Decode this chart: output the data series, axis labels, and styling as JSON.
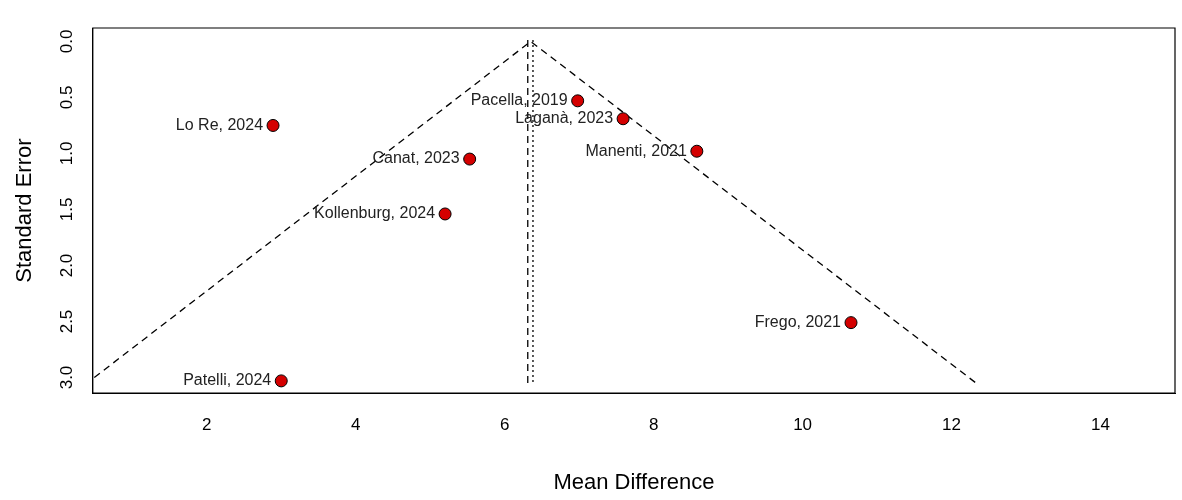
{
  "chart_data": {
    "type": "scatter",
    "xlabel": "Mean Difference",
    "ylabel": "Standard Error",
    "xlim": [
      0.47,
      15.0
    ],
    "ylim": [
      3.14,
      -0.12
    ],
    "xticks": [
      2,
      4,
      6,
      8,
      10,
      12,
      14
    ],
    "yticks": [
      {
        "value": 0,
        "label": "0.0"
      },
      {
        "value": 0.5,
        "label": "0.5"
      },
      {
        "value": 1,
        "label": "1.0"
      },
      {
        "value": 1.5,
        "label": "1.5"
      },
      {
        "value": 2,
        "label": "2.0"
      },
      {
        "value": 2.5,
        "label": "2.5"
      },
      {
        "value": 3,
        "label": "3.0"
      }
    ],
    "grid": false,
    "legend": false,
    "marker": "circle",
    "series": [
      {
        "color": "#d40000",
        "x": [
          2.89,
          3.0,
          5.2,
          5.53,
          6.98,
          7.59,
          8.58,
          10.65
        ],
        "values": [
          0.75,
          3.03,
          1.54,
          1.05,
          0.53,
          0.69,
          0.98,
          2.51
        ]
      },
      {
        "type": "line",
        "color": "#000000",
        "line_style": "dashed",
        "marker": "none",
        "x": [
          0.49,
          6.35,
          12.33
        ],
        "values": [
          3.0,
          0,
          3.05
        ]
      }
    ],
    "ref_lines": [
      {
        "axis": "x",
        "value": 6.31,
        "line_style": "dashed",
        "color": "#000000"
      },
      {
        "axis": "x",
        "value": 6.38,
        "line_style": "dotted",
        "color": "#000000"
      }
    ],
    "annotations": [
      {
        "text": "Lo Re, 2024",
        "x": 2.89,
        "y": 0.75
      },
      {
        "text": "Patelli, 2024",
        "x": 3.0,
        "y": 3.03
      },
      {
        "text": "Kollenburg, 2024",
        "x": 5.2,
        "y": 1.54
      },
      {
        "text": "Canat, 2023",
        "x": 5.53,
        "y": 1.05
      },
      {
        "text": "Pacella, 2019",
        "x": 6.98,
        "y": 0.53
      },
      {
        "text": "Laganà, 2023",
        "x": 7.59,
        "y": 0.69
      },
      {
        "text": "Manenti, 2021",
        "x": 8.58,
        "y": 0.98
      },
      {
        "text": "Frego, 2021",
        "x": 10.65,
        "y": 2.51
      }
    ]
  }
}
